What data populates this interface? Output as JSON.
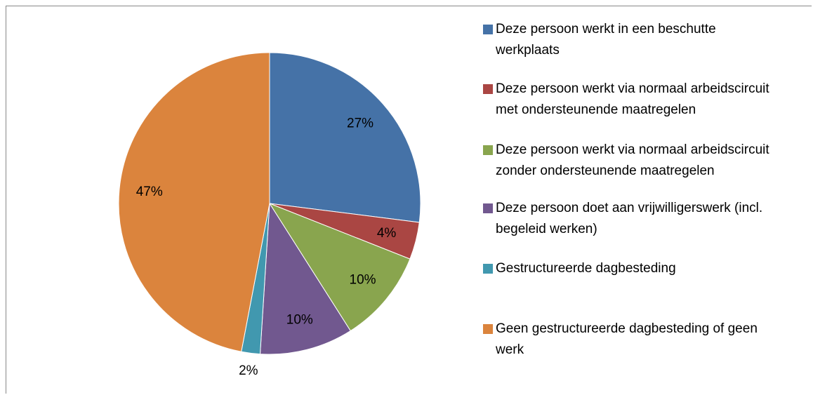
{
  "chart_data": {
    "type": "pie",
    "categories": [
      "Deze persoon werkt in een beschutte werkplaats",
      "Deze persoon werkt via normaal arbeidscircuit met ondersteunende maatregelen",
      "Deze persoon werkt via normaal arbeidscircuit zonder ondersteunende maatregelen",
      "Deze persoon doet aan vrijwilligerswerk (incl. begeleid werken)",
      "Gestructureerde dagbesteding",
      "Geen gestructureerde dagbesteding of geen werk"
    ],
    "values": [
      27,
      4,
      10,
      10,
      2,
      47
    ],
    "value_labels": [
      "27%",
      "4%",
      "10%",
      "10%",
      "2%",
      "47%"
    ],
    "colors": [
      "#4572a7",
      "#aa4643",
      "#89a54e",
      "#71588f",
      "#4198af",
      "#db843d"
    ],
    "legend": "right"
  }
}
